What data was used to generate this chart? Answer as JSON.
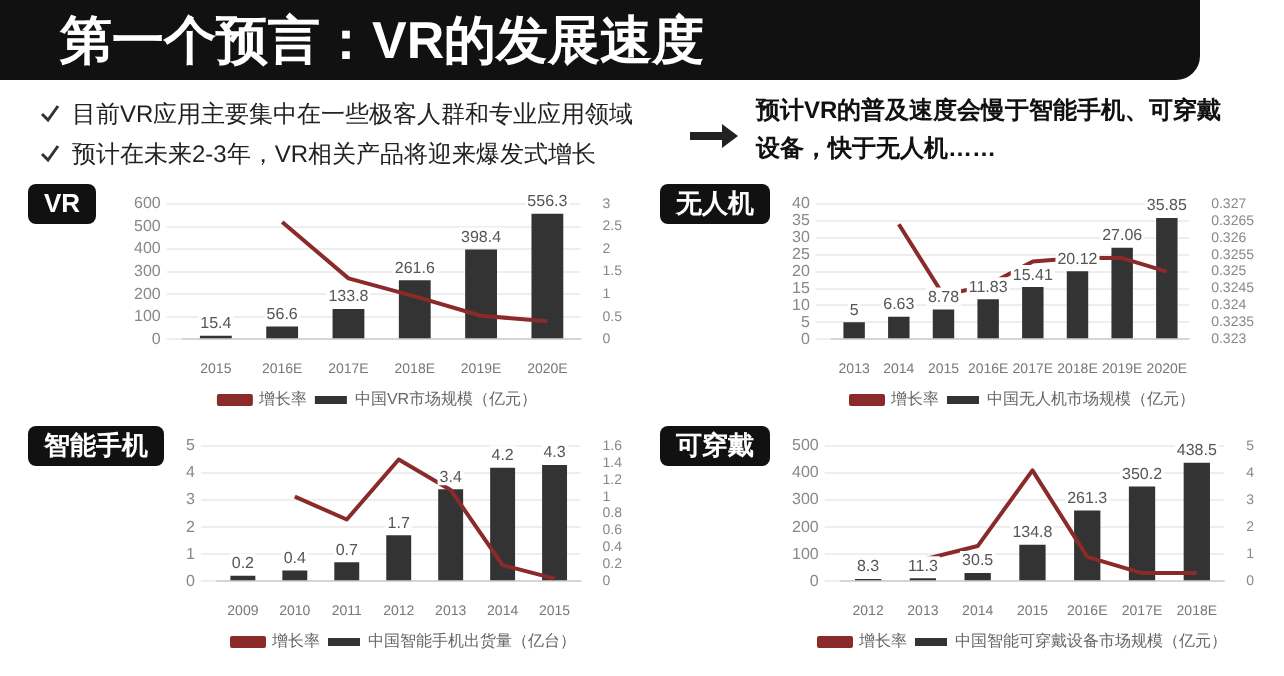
{
  "chart_data": [
    {
      "type": "bar",
      "title": "VR",
      "annotations": [
        "第一个预言：VR的发展速度",
        "目前VR应用主要集中在一些极客人群和专业应用领域",
        "预计在未来2-3年，VR相关产品将迎来爆发式增长"
      ],
      "categories": [
        "2015",
        "2016E",
        "2017E",
        "2018E",
        "2019E",
        "2020E"
      ],
      "series": [
        {
          "name": "中国VR市场规模（亿元）",
          "color": "#333333",
          "values": [
            15.4,
            56.6,
            133.8,
            261.6,
            398.4,
            556.3
          ],
          "value_labels": [
            "15.4",
            "56.6",
            "133.8",
            "261.6",
            "398.4",
            "556.3"
          ]
        },
        {
          "name": "增长率",
          "type": "line",
          "axis": "y2",
          "color": "#8b2a2a",
          "values": [
            null,
            2.6,
            1.35,
            0.95,
            0.52,
            0.4
          ]
        }
      ],
      "ylim": [
        0,
        600
      ],
      "yticks": [
        0,
        100,
        200,
        300,
        400,
        500,
        600
      ],
      "y2lim": [
        0,
        3
      ],
      "y2ticks": [
        0,
        0.5,
        1,
        1.5,
        2,
        2.5,
        3
      ],
      "grid": "y",
      "legend": "bottom",
      "marker": "none"
    },
    {
      "type": "bar",
      "title": "无人机",
      "annotations": [
        "预计VR的普及速度会慢于智能手机、可穿戴设备，快于无人机……"
      ],
      "categories": [
        "2013",
        "2014",
        "2015",
        "2016E",
        "2017E",
        "2018E",
        "2019E",
        "2020E"
      ],
      "series": [
        {
          "name": "中国无人机市场规模（亿元）",
          "color": "#333333",
          "values": [
            5,
            6.63,
            8.78,
            11.83,
            15.41,
            20.12,
            27.06,
            35.85
          ],
          "value_labels": [
            "5",
            "6.63",
            "8.78",
            "11.83",
            "15.41",
            "20.12",
            "27.06",
            "35.85"
          ]
        },
        {
          "name": "增长率",
          "type": "line",
          "axis": "y2",
          "color": "#8b2a2a",
          "values": [
            null,
            0.3264,
            0.3243,
            0.3246,
            0.3253,
            0.3254,
            0.3254,
            0.325
          ]
        }
      ],
      "ylim": [
        0,
        40
      ],
      "yticks": [
        0,
        5,
        10,
        15,
        20,
        25,
        30,
        35,
        40
      ],
      "y2lim": [
        0.323,
        0.327
      ],
      "y2ticks": [
        0.323,
        0.3235,
        0.324,
        0.3245,
        0.325,
        0.3255,
        0.326,
        0.3265,
        0.327
      ],
      "grid": "y",
      "legend": "bottom",
      "marker": "none"
    },
    {
      "type": "bar",
      "title": "智能手机",
      "categories": [
        "2009",
        "2010",
        "2011",
        "2012",
        "2013",
        "2014",
        "2015"
      ],
      "series": [
        {
          "name": "中国智能手机出货量（亿台）",
          "color": "#333333",
          "values": [
            0.2,
            0.4,
            0.7,
            1.7,
            3.4,
            4.2,
            4.3
          ],
          "value_labels": [
            "0.2",
            "0.4",
            "0.7",
            "1.7",
            "3.4",
            "4.2",
            "4.3"
          ]
        },
        {
          "name": "增长率",
          "type": "line",
          "axis": "y2",
          "color": "#8b2a2a",
          "values": [
            null,
            1.0,
            0.73,
            1.44,
            1.08,
            0.19,
            0.03
          ]
        }
      ],
      "ylim": [
        0,
        5
      ],
      "yticks": [
        0,
        1,
        2,
        3,
        4,
        5
      ],
      "y2lim": [
        0,
        1.6
      ],
      "y2ticks": [
        0,
        0.2,
        0.4,
        0.6,
        0.8,
        1,
        1.2,
        1.4,
        1.6
      ],
      "grid": "y",
      "legend": "bottom",
      "marker": "none"
    },
    {
      "type": "bar",
      "title": "可穿戴",
      "categories": [
        "2012",
        "2013",
        "2014",
        "2015",
        "2016E",
        "2017E",
        "2018E"
      ],
      "series": [
        {
          "name": "中国智能可穿戴设备市场规模（亿元）",
          "color": "#333333",
          "values": [
            8.3,
            11.3,
            30.5,
            134.8,
            261.3,
            350.2,
            438.5
          ],
          "value_labels": [
            "8.3",
            "11.3",
            "30.5",
            "134.8",
            "261.3",
            "350.2",
            "438.5"
          ]
        },
        {
          "name": "增长率",
          "type": "line",
          "axis": "y2",
          "color": "#8b2a2a",
          "values": [
            null,
            0.8,
            1.3,
            4.1,
            0.9,
            0.3,
            0.3
          ]
        }
      ],
      "ylim": [
        0,
        500
      ],
      "yticks": [
        0,
        100,
        200,
        300,
        400,
        500
      ],
      "y2lim": [
        0,
        5
      ],
      "y2ticks": [
        0,
        1,
        2,
        3,
        4,
        5
      ],
      "grid": "y",
      "legend": "bottom",
      "marker": "none"
    }
  ]
}
